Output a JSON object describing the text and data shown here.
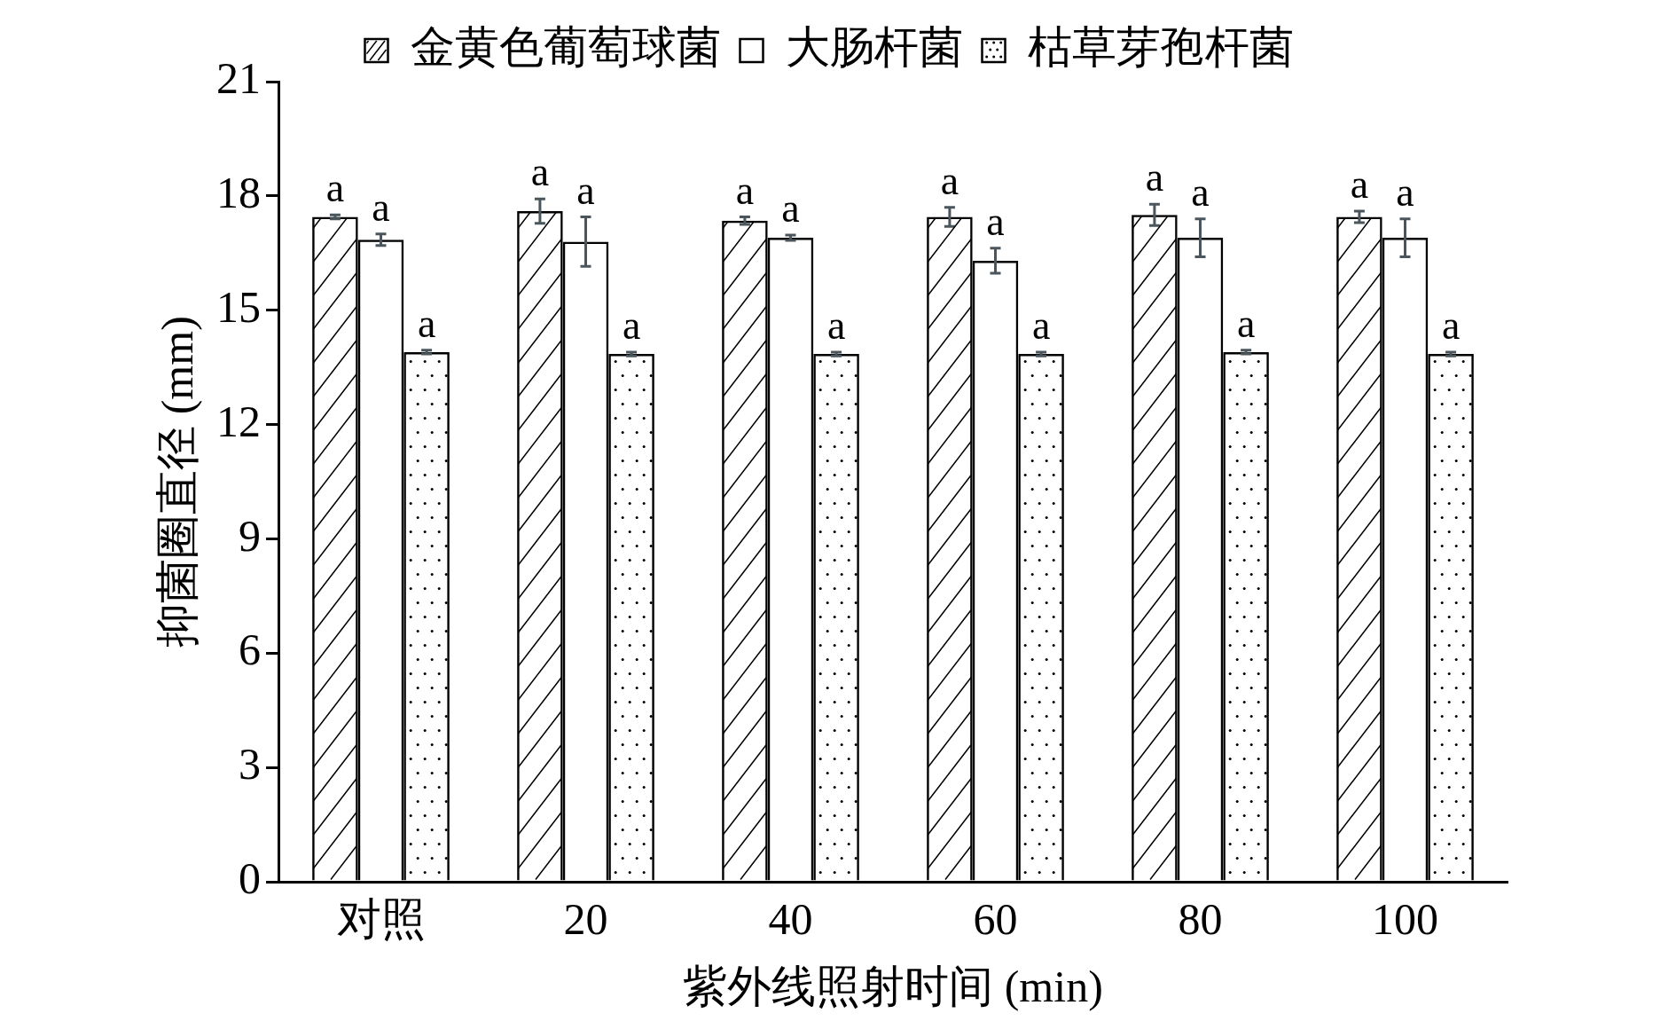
{
  "chart_data": {
    "type": "bar",
    "xlabel": "紫外线照射时间 (min)",
    "ylabel": "抑菌圈直径 (mm)",
    "categories": [
      "对照",
      "20",
      "40",
      "60",
      "80",
      "100"
    ],
    "series": [
      {
        "name": "金黄色葡萄球菌",
        "color": "#000000",
        "values": [
          17.45,
          17.6,
          17.35,
          17.45,
          17.5,
          17.45
        ],
        "errors": [
          0.05,
          0.32,
          0.1,
          0.25,
          0.28,
          0.15
        ],
        "value_labels": [
          "a",
          "a",
          "a",
          "a",
          "a",
          "a"
        ]
      },
      {
        "name": "大肠杆菌",
        "color": "#000000",
        "values": [
          16.85,
          16.8,
          16.9,
          16.3,
          16.9,
          16.9
        ],
        "errors": [
          0.15,
          0.65,
          0.07,
          0.33,
          0.5,
          0.5
        ],
        "value_labels": [
          "a",
          "a",
          "a",
          "a",
          "a",
          "a"
        ]
      },
      {
        "name": "枯草芽孢杆菌",
        "color": "#000000",
        "values": [
          13.9,
          13.85,
          13.85,
          13.85,
          13.9,
          13.85
        ],
        "errors": [
          0.05,
          0.05,
          0.05,
          0.05,
          0.05,
          0.05
        ],
        "value_labels": [
          "a",
          "a",
          "a",
          "a",
          "a",
          "a"
        ]
      }
    ],
    "ylim": [
      0,
      21
    ],
    "yticks": [
      0,
      3,
      6,
      9,
      12,
      15,
      18,
      21
    ],
    "grid": false,
    "legend": "top"
  }
}
